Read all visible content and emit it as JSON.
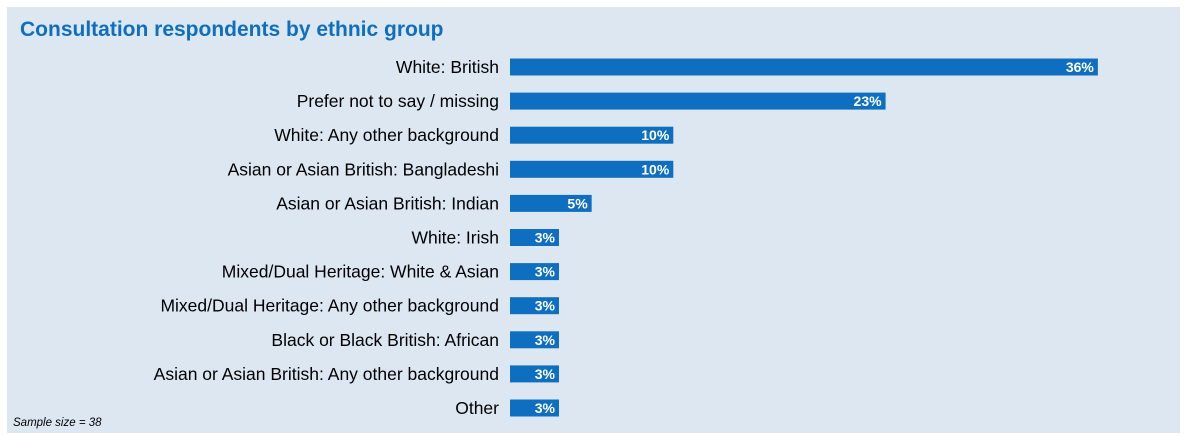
{
  "colors": {
    "bar": "#0e6fc1",
    "title": "#0e6fc1",
    "background": "#dde7f2"
  },
  "footnote": "Sample size = 38",
  "chart_data": {
    "type": "bar",
    "orientation": "horizontal",
    "title": "Consultation respondents by ethnic group",
    "xlabel": "",
    "ylabel": "",
    "xlim": [
      0,
      38
    ],
    "grid": false,
    "legend": "none",
    "categories": [
      "White: British",
      "Prefer not to say / missing",
      "White: Any other background",
      "Asian or Asian British: Bangladeshi",
      "Asian or Asian British: Indian",
      "White: Irish",
      "Mixed/Dual Heritage: White & Asian",
      "Mixed/Dual Heritage: Any other background",
      "Black or Black British: African",
      "Asian or Asian British: Any other background",
      "Other"
    ],
    "values": [
      36,
      23,
      10,
      10,
      5,
      3,
      3,
      3,
      3,
      3,
      3
    ],
    "data_labels": [
      "36%",
      "23%",
      "10%",
      "10%",
      "5%",
      "3%",
      "3%",
      "3%",
      "3%",
      "3%",
      "3%"
    ]
  }
}
